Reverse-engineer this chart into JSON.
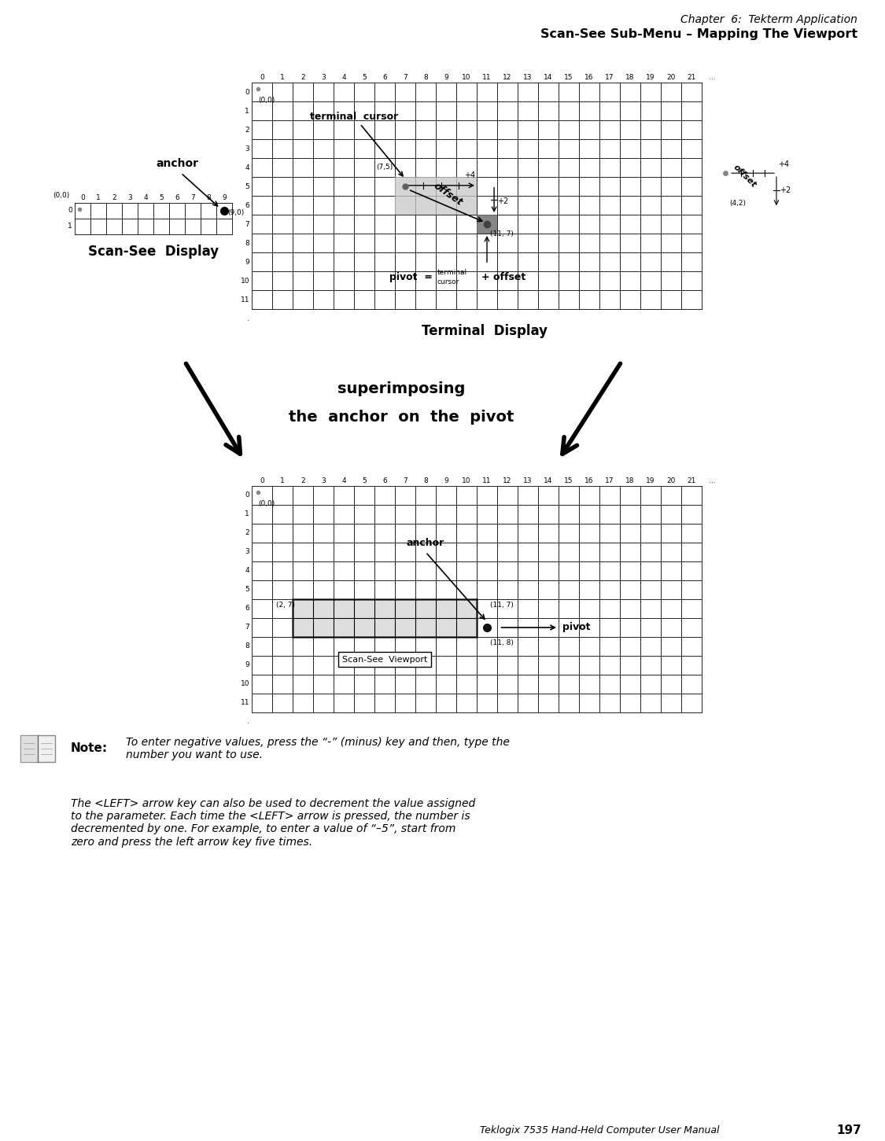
{
  "page_title_line1": "Chapter  6:  Tekterm Application",
  "page_title_line2": "Scan-See Sub-Menu – Mapping The Viewport",
  "footer_text": "Teklogix 7535 Hand-Held Computer User Manual",
  "footer_page": "197",
  "bg_color": "#ffffff",
  "top_grid_col_labels": [
    "0",
    "1",
    "2",
    "3",
    "4",
    "5",
    "6",
    "7",
    "8",
    "9",
    "10",
    "11",
    "12",
    "13",
    "14",
    "15",
    "16",
    "17",
    "18",
    "19",
    "20",
    "21",
    "..."
  ],
  "top_grid_row_labels": [
    "0",
    "1",
    "2",
    "3",
    "4",
    "5",
    "6",
    "7",
    "8",
    "9",
    "10",
    "11",
    "."
  ],
  "scan_see_col_labels": [
    "0",
    "1",
    "2",
    "3",
    "4",
    "5",
    "6",
    "7",
    "8",
    "9"
  ],
  "scan_see_row_labels": [
    "0",
    "1"
  ],
  "bottom_grid_col_labels": [
    "0",
    "1",
    "2",
    "3",
    "4",
    "5",
    "6",
    "7",
    "8",
    "9",
    "10",
    "11",
    "12",
    "13",
    "14",
    "15",
    "16",
    "17",
    "18",
    "19",
    "20",
    "21",
    "..."
  ],
  "bottom_grid_row_labels": [
    "0",
    "1",
    "2",
    "3",
    "4",
    "5",
    "6",
    "7",
    "8",
    "9",
    "10",
    "11",
    "."
  ],
  "note_body1": "To enter negative values, press the “-” (minus) key and then, type the\nnumber you want to use.",
  "note_body2": "The <LEFT> arrow key can also be used to decrement the value assigned\nto the parameter. Each time the <LEFT> arrow is pressed, the number is\ndecremented by one. For example, to enter a value of “–5”, start from\nzero and press the left arrow key five times."
}
